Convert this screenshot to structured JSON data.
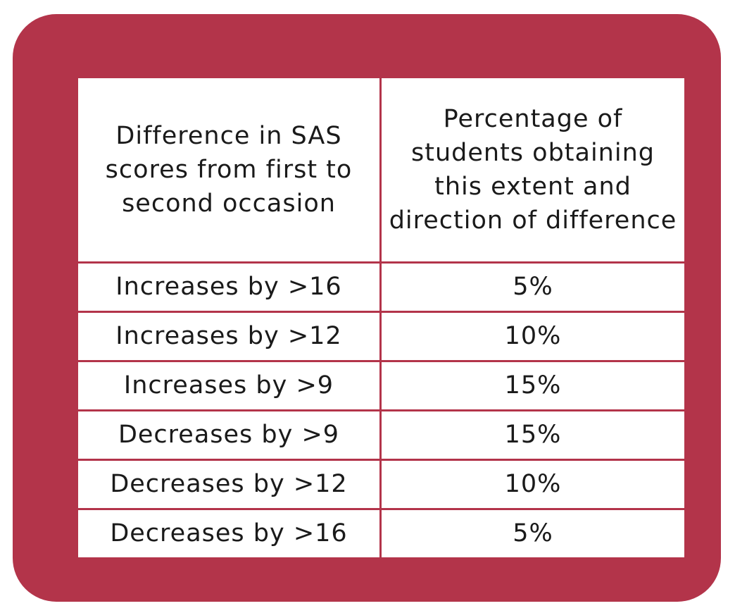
{
  "colors": {
    "frame": "#b3344a",
    "table_background": "#ffffff",
    "text": "#1a1a1a"
  },
  "table": {
    "headers": [
      "Difference in SAS scores from first to second occasion",
      "Percentage of students obtaining this extent and direction of difference"
    ],
    "rows": [
      {
        "difference": "Increases by >16",
        "percentage": "5%"
      },
      {
        "difference": "Increases by >12",
        "percentage": "10%"
      },
      {
        "difference": "Increases by >9",
        "percentage": "15%"
      },
      {
        "difference": "Decreases by >9",
        "percentage": "15%"
      },
      {
        "difference": "Decreases by >12",
        "percentage": "10%"
      },
      {
        "difference": "Decreases by >16",
        "percentage": "5%"
      }
    ]
  }
}
